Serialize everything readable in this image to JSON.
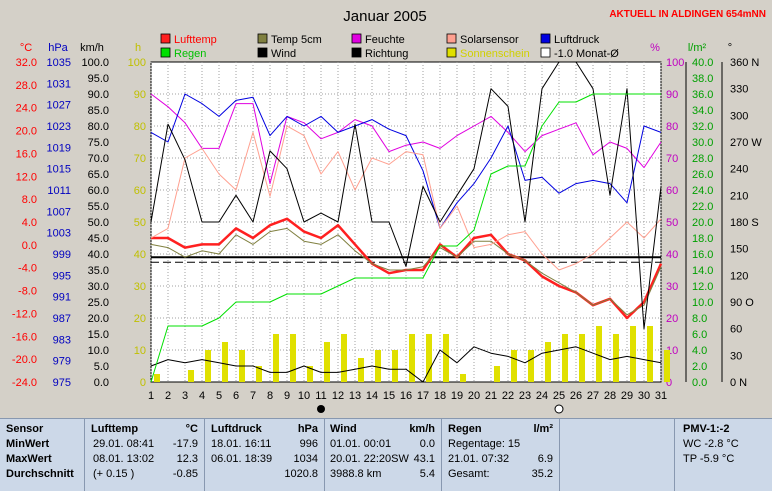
{
  "header": {
    "title": "Januar 2005",
    "location": "AKTUELL IN ALDINGEN 654mNN"
  },
  "axis_units": {
    "temp": "°C",
    "pressure": "hPa",
    "wind": "km/h",
    "sun": "h",
    "humidity": "%",
    "rain": "l/m²",
    "dir": "°"
  },
  "legend": [
    {
      "label": "Lufttemp",
      "color": "#ff2020",
      "text_color": "#ff0000"
    },
    {
      "label": "Regen",
      "color": "#00e000",
      "text_color": "#00c000"
    },
    {
      "label": "Temp 5cm",
      "color": "#808040",
      "text_color": "#000000"
    },
    {
      "label": "Wind",
      "color": "#000000",
      "text_color": "#000000"
    },
    {
      "label": "Feuchte",
      "color": "#e000e0",
      "text_color": "#000000"
    },
    {
      "label": "Richtung",
      "color": "#000000",
      "text_color": "#000000"
    },
    {
      "label": "Solarsensor",
      "color": "#ffa090",
      "text_color": "#000000"
    },
    {
      "label": "Sonnenschein",
      "color": "#e0e000",
      "text_color": "#d0d000"
    },
    {
      "label": "Luftdruck",
      "color": "#0000e0",
      "text_color": "#000000"
    },
    {
      "label": "-1.0 Monat-Ø",
      "color": "#ffffff",
      "text_color": "#000000"
    }
  ],
  "chart_data": {
    "type": "line",
    "title": "Januar 2005",
    "x": [
      1,
      2,
      3,
      4,
      5,
      6,
      7,
      8,
      9,
      10,
      11,
      12,
      13,
      14,
      15,
      16,
      17,
      18,
      19,
      20,
      21,
      22,
      23,
      24,
      25,
      26,
      27,
      28,
      29,
      30,
      31
    ],
    "x_ticks": [
      "1",
      "2",
      "3",
      "4",
      "5",
      "6",
      "7",
      "8",
      "9",
      "10",
      "11",
      "12",
      "13",
      "14",
      "15",
      "16",
      "17",
      "18",
      "19",
      "20",
      "21",
      "22",
      "23",
      "24",
      "25",
      "26",
      "27",
      "28",
      "29",
      "30",
      "31"
    ],
    "left_axes": {
      "temp_ticks": [
        "32.0",
        "28.0",
        "24.0",
        "20.0",
        "16.0",
        "12.0",
        "8.0",
        "4.0",
        "0.0",
        "-4.0",
        "-8.0",
        "-12.0",
        "-16.0",
        "-20.0",
        "-24.0"
      ],
      "pressure_ticks": [
        "1035",
        "1031",
        "1027",
        "1023",
        "1019",
        "1015",
        "1011",
        "1007",
        "1003",
        "999",
        "995",
        "991",
        "987",
        "983",
        "979",
        "975"
      ],
      "wind_ticks": [
        "100.0",
        "95.0",
        "90.0",
        "85.0",
        "80.0",
        "75.0",
        "70.0",
        "65.0",
        "60.0",
        "55.0",
        "50.0",
        "45.0",
        "40.0",
        "35.0",
        "30.0",
        "25.0",
        "20.0",
        "15.0",
        "10.0",
        "5.0",
        "0.0"
      ],
      "sun_ticks": [
        "100",
        "90",
        "80",
        "70",
        "60",
        "50",
        "40",
        "30",
        "20",
        "10",
        "0"
      ]
    },
    "right_axes": {
      "humidity_ticks": [
        "100",
        "90",
        "80",
        "70",
        "60",
        "50",
        "40",
        "30",
        "20",
        "10",
        "0"
      ],
      "rain_ticks": [
        "40.0",
        "38.0",
        "36.0",
        "34.0",
        "32.0",
        "30.0",
        "28.0",
        "26.0",
        "24.0",
        "22.0",
        "20.0",
        "18.0",
        "16.0",
        "14.0",
        "12.0",
        "10.0",
        "8.0",
        "6.0",
        "4.0",
        "2.0",
        "0.0"
      ],
      "dir_ticks": [
        "360 N",
        "330",
        "300",
        "270 W",
        "240",
        "210",
        "180 S",
        "150",
        "120",
        "90 O",
        "60",
        "30",
        "0    N"
      ]
    },
    "ylim_wind": [
      0,
      100
    ],
    "series": [
      {
        "name": "Lufttemp",
        "color": "#ff2020",
        "width": 2.5,
        "values": [
          45,
          45,
          42,
          43,
          43,
          48,
          45,
          49,
          51,
          47,
          45,
          49,
          43,
          37,
          34,
          35,
          35,
          43,
          39,
          45,
          46,
          40,
          38,
          33,
          30,
          28,
          24,
          26,
          20,
          25,
          37
        ]
      },
      {
        "name": "Temp 5cm",
        "color": "#808040",
        "width": 1,
        "values": [
          43,
          42,
          39,
          41,
          40,
          46,
          43,
          47,
          48,
          44,
          43,
          46,
          41,
          37,
          35,
          35,
          36,
          42,
          39,
          44,
          44,
          40,
          38,
          34,
          31,
          28,
          24,
          26,
          21,
          24,
          36
        ]
      },
      {
        "name": "Feuchte",
        "color": "#e000e0",
        "width": 1,
        "values": [
          90,
          86,
          81,
          73,
          73,
          87,
          87,
          62,
          83,
          81,
          76,
          78,
          82,
          80,
          72,
          74,
          75,
          73,
          77,
          80,
          83,
          78,
          72,
          77,
          79,
          81,
          71,
          75,
          73,
          67,
          75
        ]
      },
      {
        "name": "Luftdruck",
        "color": "#0000e0",
        "width": 1,
        "values": [
          78,
          75,
          90,
          87,
          83,
          88,
          89,
          77,
          83,
          80,
          83,
          78,
          80,
          82,
          79,
          77,
          66,
          48,
          56,
          62,
          70,
          80,
          63,
          64,
          59,
          62,
          63,
          62,
          56,
          80,
          78
        ]
      },
      {
        "name": "Solarsensor",
        "color": "#ffa090",
        "width": 1,
        "values": [
          45,
          48,
          70,
          73,
          65,
          60,
          78,
          58,
          80,
          77,
          65,
          72,
          60,
          70,
          68,
          72,
          71,
          48,
          55,
          42,
          43,
          46,
          47,
          40,
          35,
          37,
          40,
          45,
          50,
          45,
          51
        ]
      },
      {
        "name": "Wind",
        "color": "#000000",
        "width": 1,
        "values": [
          5,
          7,
          6,
          7,
          6,
          5,
          5,
          3,
          3,
          5,
          3,
          3,
          4,
          5,
          4,
          4,
          0,
          10,
          6,
          11,
          9,
          8,
          6,
          9,
          10,
          11,
          9,
          7,
          8,
          7,
          6
        ]
      },
      {
        "name": "Richtung",
        "color": "#000000",
        "width": 1,
        "values": [
          180,
          290,
          250,
          180,
          180,
          210,
          180,
          260,
          240,
          180,
          190,
          180,
          290,
          180,
          180,
          130,
          220,
          180,
          210,
          240,
          330,
          310,
          180,
          330,
          360,
          360,
          330,
          210,
          330,
          60,
          220
        ]
      },
      {
        "name": "Regen",
        "color": "#00e000",
        "width": 1,
        "values": [
          0,
          7,
          7,
          7,
          8,
          10,
          10,
          10,
          11,
          11,
          11,
          12,
          13,
          13,
          13,
          13,
          13,
          17,
          17,
          19,
          26,
          27,
          27,
          32,
          35,
          35,
          36,
          36,
          36,
          36,
          36
        ]
      }
    ],
    "sunshine_hours": [
      1,
      0,
      1.5,
      4,
      5,
      4,
      2,
      6,
      6,
      2,
      5,
      6,
      3,
      4,
      4,
      6,
      6,
      6,
      1,
      0,
      2,
      4,
      4,
      5,
      6,
      6,
      7,
      6,
      7,
      7,
      4
    ],
    "avg_temp_value": -0.85,
    "avg_pressure_level": 39
  },
  "panel": {
    "sensor": {
      "h": "Sensor",
      "r1": "MinWert",
      "r2": "MaxWert",
      "r3": "Durchschnitt"
    },
    "lufttemp": {
      "h": "Lufttemp",
      "u": "°C",
      "r1a": "29.01.  08:41",
      "r1b": "-17.9",
      "r2a": "08.01.  13:02",
      "r2b": "12.3",
      "r3a": "(+ 0.15 )",
      "r3b": "-0.85"
    },
    "luftdruck": {
      "h": "Luftdruck",
      "u": "hPa",
      "r1a": "18.01.  16:11",
      "r1b": "996",
      "r2a": "06.01.  18:39",
      "r2b": "1034",
      "r3b": "1020.8"
    },
    "wind": {
      "h": "Wind",
      "u": "km/h",
      "r1a": "01.01.  00:01",
      "r1b": "0.0",
      "r2a": "20.01.  22:20SW",
      "r2b": "43.1",
      "r3a": "3988.8 km",
      "r3b": "5.4"
    },
    "regen": {
      "h": "Regen",
      "u": "l/m²",
      "r1a": "Regentage: 15",
      "r2a": "21.01.  07:32",
      "r2b": "6.9",
      "r3a": "Gesamt:",
      "r3b": "35.2"
    },
    "pmv": {
      "h": "PMV-1:-2",
      "r1": "WC -2.8 °C",
      "r2": "TP -5.9 °C"
    }
  }
}
